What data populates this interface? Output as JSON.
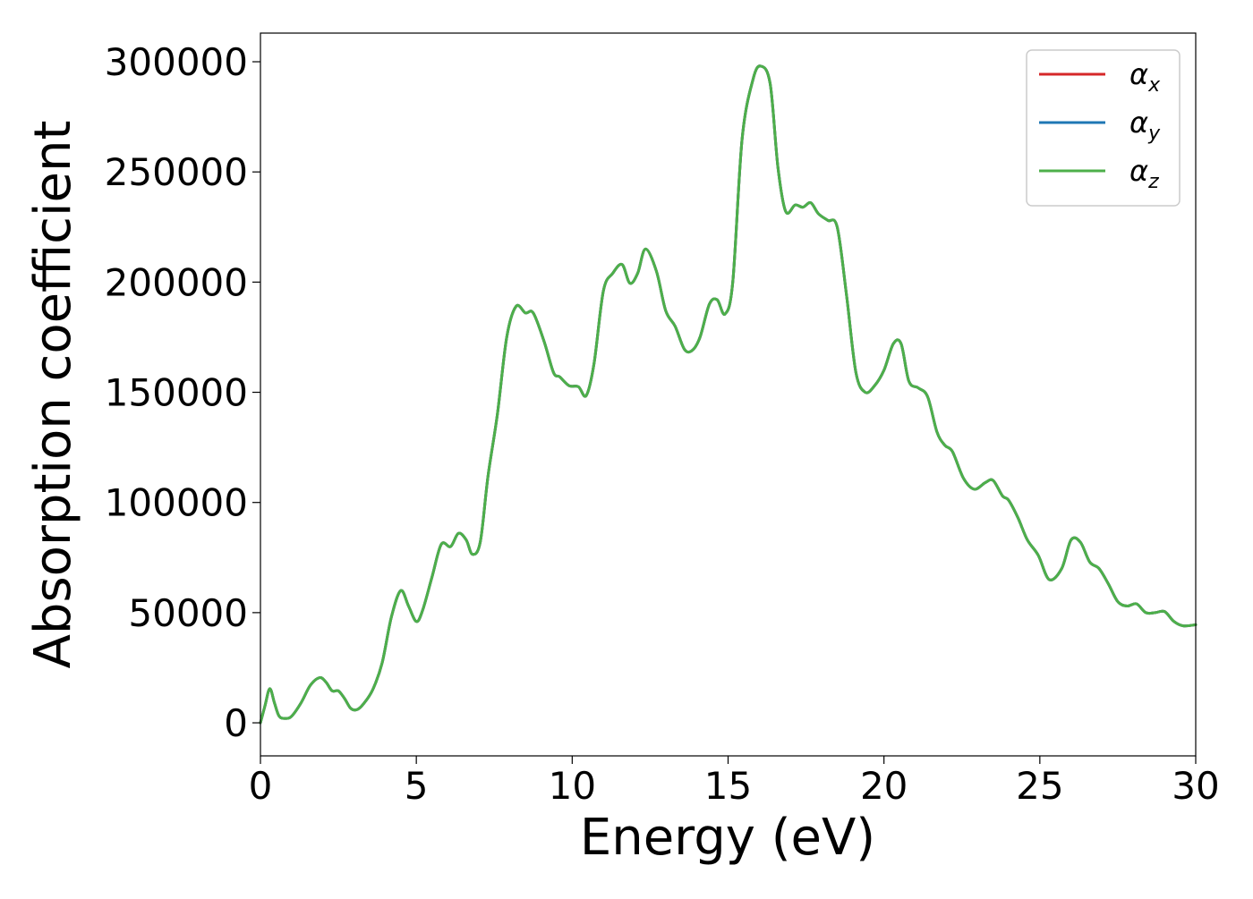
{
  "chart_data": {
    "type": "line",
    "title": "",
    "xlabel": "Energy (eV)",
    "ylabel": "Absorption coefficient",
    "xlim": [
      0,
      30
    ],
    "ylim": [
      -15000,
      313000
    ],
    "xticks": [
      0,
      5,
      10,
      15,
      20,
      25,
      30
    ],
    "xtick_labels": [
      "0",
      "5",
      "10",
      "15",
      "20",
      "25",
      "30"
    ],
    "yticks": [
      0,
      50000,
      100000,
      150000,
      200000,
      250000,
      300000
    ],
    "ytick_labels": [
      "0",
      "50000",
      "100000",
      "150000",
      "200000",
      "250000",
      "300000"
    ],
    "grid": false,
    "legend_position": "top-right",
    "legend_note": "all three series overlap exactly; only the last-drawn (green) is visible",
    "x": [
      0,
      0.15,
      0.3,
      0.45,
      0.6,
      0.8,
      1.0,
      1.3,
      1.6,
      1.9,
      2.1,
      2.3,
      2.5,
      2.7,
      2.9,
      3.1,
      3.3,
      3.6,
      3.9,
      4.2,
      4.5,
      4.75,
      5.0,
      5.2,
      5.5,
      5.8,
      6.1,
      6.35,
      6.6,
      6.8,
      7.05,
      7.3,
      7.6,
      7.9,
      8.2,
      8.5,
      8.75,
      9.1,
      9.4,
      9.6,
      9.9,
      10.2,
      10.45,
      10.7,
      11.0,
      11.3,
      11.6,
      11.85,
      12.1,
      12.35,
      12.7,
      13.0,
      13.3,
      13.6,
      13.85,
      14.1,
      14.4,
      14.65,
      14.9,
      15.15,
      15.45,
      15.8,
      16.05,
      16.35,
      16.6,
      16.85,
      17.15,
      17.4,
      17.65,
      17.9,
      18.2,
      18.5,
      18.8,
      19.1,
      19.4,
      19.7,
      20.0,
      20.3,
      20.55,
      20.8,
      21.1,
      21.4,
      21.7,
      21.95,
      22.2,
      22.55,
      22.9,
      23.25,
      23.5,
      23.8,
      24.0,
      24.3,
      24.6,
      24.95,
      25.3,
      25.7,
      26.0,
      26.3,
      26.6,
      26.9,
      27.2,
      27.5,
      27.8,
      28.1,
      28.4,
      28.7,
      29.0,
      29.3,
      29.6,
      30.0
    ],
    "series": [
      {
        "name": "α_x",
        "color": "#d62728",
        "values": [
          0,
          8000,
          15500,
          9000,
          3000,
          2000,
          3000,
          9000,
          17000,
          20500,
          18500,
          14500,
          14500,
          11000,
          6500,
          6000,
          8500,
          15000,
          27000,
          48000,
          60000,
          53000,
          46000,
          51000,
          66000,
          81000,
          80000,
          86000,
          83000,
          76500,
          82000,
          112000,
          140000,
          175000,
          189000,
          186000,
          186000,
          173000,
          159000,
          157000,
          153000,
          152500,
          148500,
          163000,
          196000,
          204000,
          208000,
          199500,
          204000,
          215000,
          205000,
          187000,
          180000,
          169500,
          169000,
          175000,
          190000,
          192000,
          185500,
          200000,
          265000,
          292000,
          298000,
          290000,
          252000,
          232000,
          235000,
          234000,
          236000,
          231000,
          228000,
          225000,
          194000,
          159000,
          150000,
          153000,
          160000,
          172000,
          172000,
          155000,
          152000,
          148000,
          132000,
          126000,
          123000,
          111000,
          106000,
          109000,
          110000,
          103000,
          101000,
          93000,
          83000,
          76000,
          65000,
          70000,
          83000,
          82000,
          73000,
          70000,
          63000,
          55000,
          53000,
          54000,
          50000,
          50000,
          50500,
          46000,
          44000,
          44500
        ]
      },
      {
        "name": "α_y",
        "color": "#1f77b4",
        "values": [
          0,
          8000,
          15500,
          9000,
          3000,
          2000,
          3000,
          9000,
          17000,
          20500,
          18500,
          14500,
          14500,
          11000,
          6500,
          6000,
          8500,
          15000,
          27000,
          48000,
          60000,
          53000,
          46000,
          51000,
          66000,
          81000,
          80000,
          86000,
          83000,
          76500,
          82000,
          112000,
          140000,
          175000,
          189000,
          186000,
          186000,
          173000,
          159000,
          157000,
          153000,
          152500,
          148500,
          163000,
          196000,
          204000,
          208000,
          199500,
          204000,
          215000,
          205000,
          187000,
          180000,
          169500,
          169000,
          175000,
          190000,
          192000,
          185500,
          200000,
          265000,
          292000,
          298000,
          290000,
          252000,
          232000,
          235000,
          234000,
          236000,
          231000,
          228000,
          225000,
          194000,
          159000,
          150000,
          153000,
          160000,
          172000,
          172000,
          155000,
          152000,
          148000,
          132000,
          126000,
          123000,
          111000,
          106000,
          109000,
          110000,
          103000,
          101000,
          93000,
          83000,
          76000,
          65000,
          70000,
          83000,
          82000,
          73000,
          70000,
          63000,
          55000,
          53000,
          54000,
          50000,
          50000,
          50500,
          46000,
          44000,
          44500
        ]
      },
      {
        "name": "α_z",
        "color": "#4daf4a",
        "values": [
          0,
          8000,
          15500,
          9000,
          3000,
          2000,
          3000,
          9000,
          17000,
          20500,
          18500,
          14500,
          14500,
          11000,
          6500,
          6000,
          8500,
          15000,
          27000,
          48000,
          60000,
          53000,
          46000,
          51000,
          66000,
          81000,
          80000,
          86000,
          83000,
          76500,
          82000,
          112000,
          140000,
          175000,
          189000,
          186000,
          186000,
          173000,
          159000,
          157000,
          153000,
          152500,
          148500,
          163000,
          196000,
          204000,
          208000,
          199500,
          204000,
          215000,
          205000,
          187000,
          180000,
          169500,
          169000,
          175000,
          190000,
          192000,
          185500,
          200000,
          265000,
          292000,
          298000,
          290000,
          252000,
          232000,
          235000,
          234000,
          236000,
          231000,
          228000,
          225000,
          194000,
          159000,
          150000,
          153000,
          160000,
          172000,
          172000,
          155000,
          152000,
          148000,
          132000,
          126000,
          123000,
          111000,
          106000,
          109000,
          110000,
          103000,
          101000,
          93000,
          83000,
          76000,
          65000,
          70000,
          83000,
          82000,
          73000,
          70000,
          63000,
          55000,
          53000,
          54000,
          50000,
          50000,
          50500,
          46000,
          44000,
          44500
        ]
      }
    ]
  },
  "legend": {
    "items": [
      {
        "symbol": "α",
        "sub": "x",
        "color": "#d62728"
      },
      {
        "symbol": "α",
        "sub": "y",
        "color": "#1f77b4"
      },
      {
        "symbol": "α",
        "sub": "z",
        "color": "#4daf4a"
      }
    ]
  }
}
